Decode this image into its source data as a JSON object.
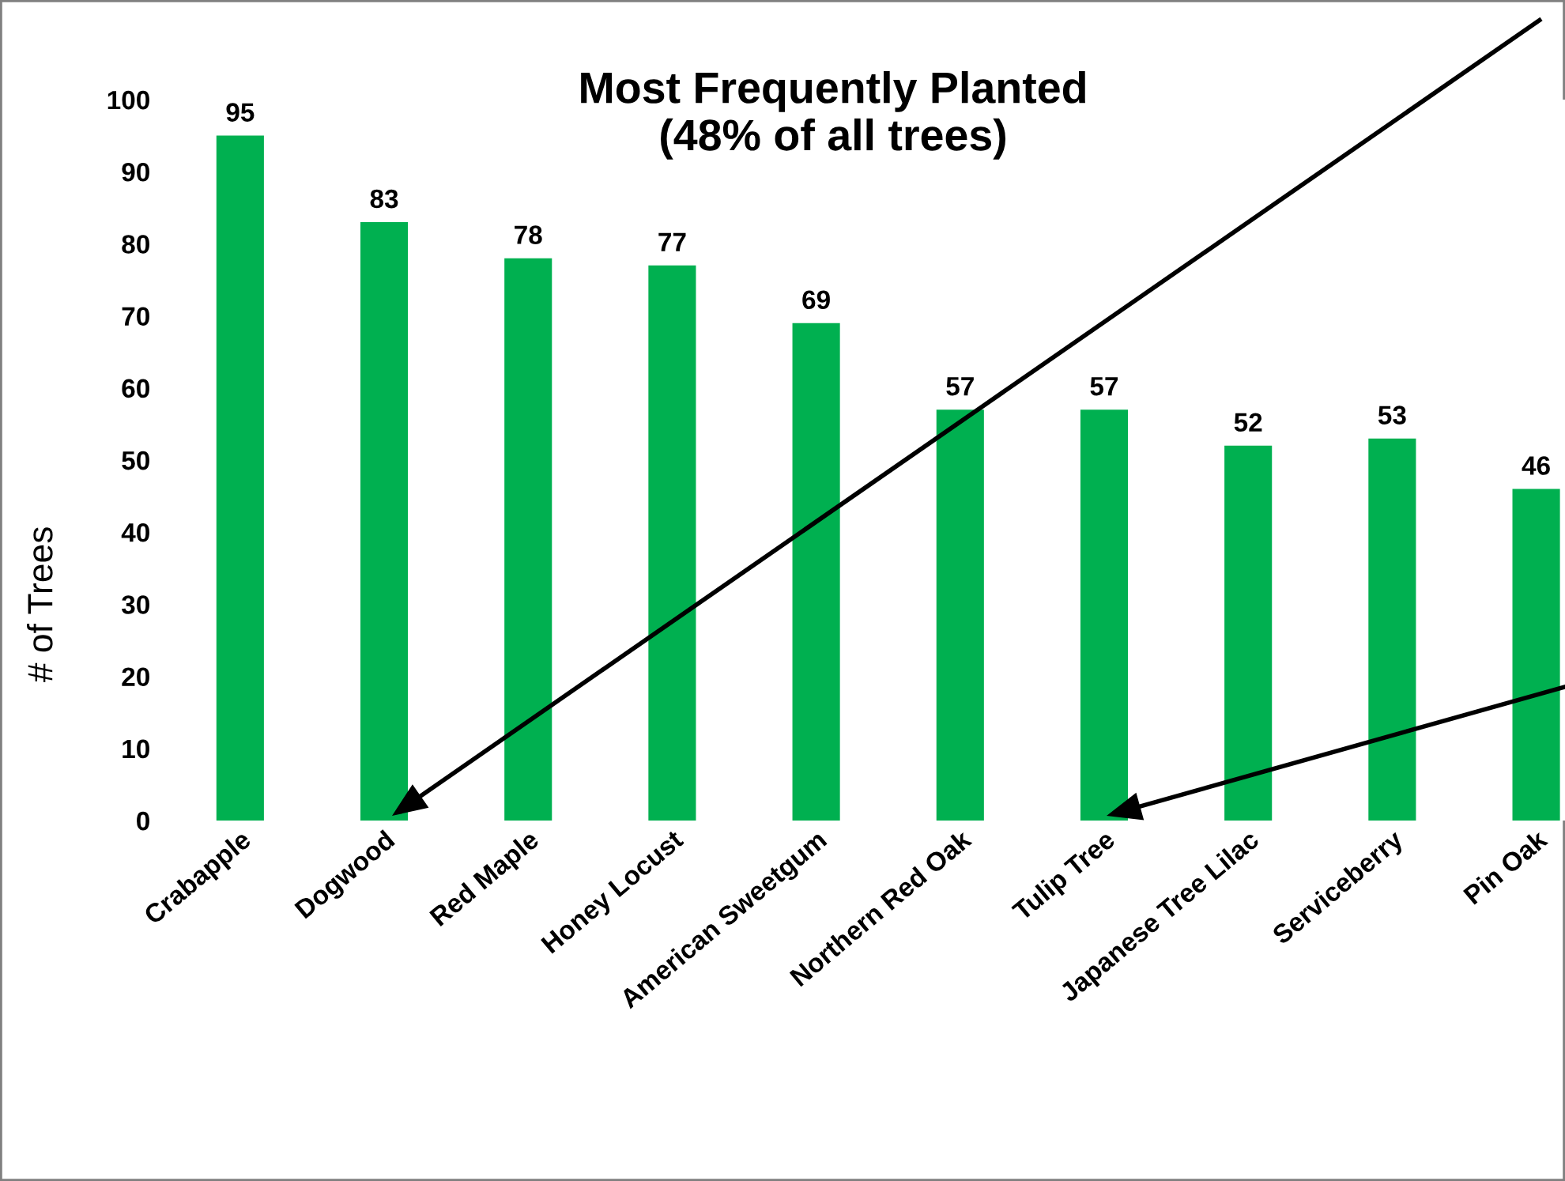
{
  "chart_data": {
    "type": "bar",
    "title": "Most Frequently Planted\n(48% of all trees)",
    "ylabel": "# of Trees",
    "categories": [
      "Crabapple",
      "Dogwood",
      "Red Maple",
      "Honey Locust",
      "American Sweetgum",
      "Northern Red Oak",
      "Tulip Tree",
      "Japanese Tree Lilac",
      "Serviceberry",
      "Pin Oak"
    ],
    "values": [
      95,
      83,
      78,
      77,
      69,
      57,
      57,
      52,
      53,
      46
    ],
    "color": "#00b050",
    "ylim": [
      0,
      100
    ],
    "yticks": [
      0,
      10,
      20,
      30,
      40,
      50,
      60,
      70,
      80,
      90,
      100
    ],
    "data_labels": true,
    "grid": false,
    "legend": false
  }
}
